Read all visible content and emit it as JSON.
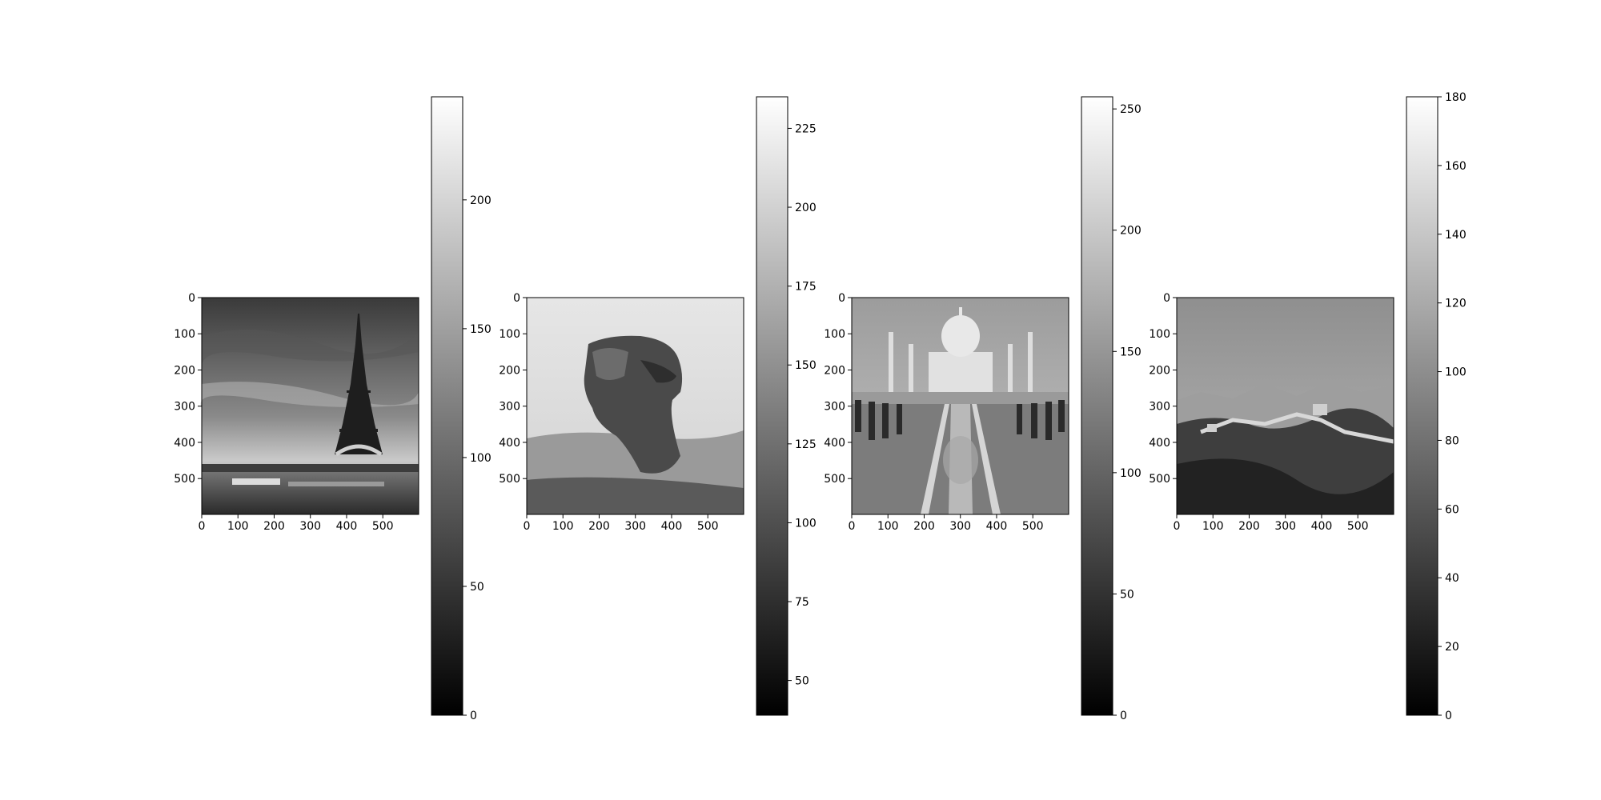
{
  "chart_data": [
    {
      "type": "image",
      "subject": "Eiffel Tower over the Seine, grayscale photo",
      "extent_x": [
        0,
        599
      ],
      "extent_y": [
        599,
        0
      ],
      "x_ticks": [
        0,
        100,
        200,
        300,
        400,
        500
      ],
      "y_ticks": [
        0,
        100,
        200,
        300,
        400,
        500
      ],
      "colormap": "gray",
      "colorbar": {
        "range": [
          0,
          240
        ],
        "ticks": [
          0,
          50,
          100,
          150,
          200
        ]
      }
    },
    {
      "type": "image",
      "subject": "Great Sphinx of Giza, grayscale photo",
      "extent_x": [
        0,
        599
      ],
      "extent_y": [
        599,
        0
      ],
      "x_ticks": [
        0,
        100,
        200,
        300,
        400,
        500
      ],
      "y_ticks": [
        0,
        100,
        200,
        300,
        400,
        500
      ],
      "colormap": "gray",
      "colorbar": {
        "range": [
          39,
          235
        ],
        "ticks": [
          50,
          75,
          100,
          125,
          150,
          175,
          200,
          225
        ]
      }
    },
    {
      "type": "image",
      "subject": "Taj Mahal with reflecting pool, grayscale photo",
      "extent_x": [
        0,
        599
      ],
      "extent_y": [
        599,
        0
      ],
      "x_ticks": [
        0,
        100,
        200,
        300,
        400,
        500
      ],
      "y_ticks": [
        0,
        100,
        200,
        300,
        400,
        500
      ],
      "colormap": "gray",
      "colorbar": {
        "range": [
          0,
          255
        ],
        "ticks": [
          0,
          50,
          100,
          150,
          200,
          250
        ]
      }
    },
    {
      "type": "image",
      "subject": "Great Wall of China over mountains, grayscale photo",
      "extent_x": [
        0,
        599
      ],
      "extent_y": [
        599,
        0
      ],
      "x_ticks": [
        0,
        100,
        200,
        300,
        400,
        500
      ],
      "y_ticks": [
        0,
        100,
        200,
        300,
        400,
        500
      ],
      "colormap": "gray",
      "colorbar": {
        "range": [
          0,
          180
        ],
        "ticks": [
          0,
          20,
          40,
          60,
          80,
          100,
          120,
          140,
          160,
          180
        ]
      }
    }
  ]
}
